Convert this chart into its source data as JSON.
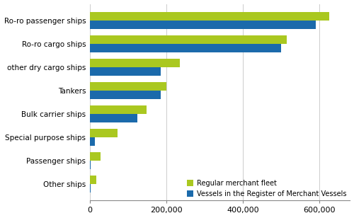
{
  "categories": [
    "Ro-ro passenger ships",
    "Ro-ro cargo ships",
    "other dry cargo ships",
    "Tankers",
    "Bulk carrier ships",
    "Special purpose ships",
    "Passenger ships",
    "Other ships"
  ],
  "register_values": [
    590000,
    500000,
    185000,
    185000,
    125000,
    13000,
    3000,
    3000
  ],
  "fleet_values": [
    625000,
    515000,
    235000,
    200000,
    148000,
    72000,
    28000,
    18000
  ],
  "register_color": "#1b6aab",
  "fleet_color": "#aac820",
  "legend_labels": [
    "Vessels in the Register of Merchant Vessels",
    "Regular merchant fleet"
  ],
  "xlim": [
    0,
    680000
  ],
  "xticks": [
    0,
    200000,
    400000,
    600000
  ],
  "xtick_labels": [
    "0",
    "200,000",
    "400,000",
    "600,000"
  ],
  "bar_height": 0.36,
  "figsize": [
    5.0,
    3.08
  ],
  "dpi": 100
}
